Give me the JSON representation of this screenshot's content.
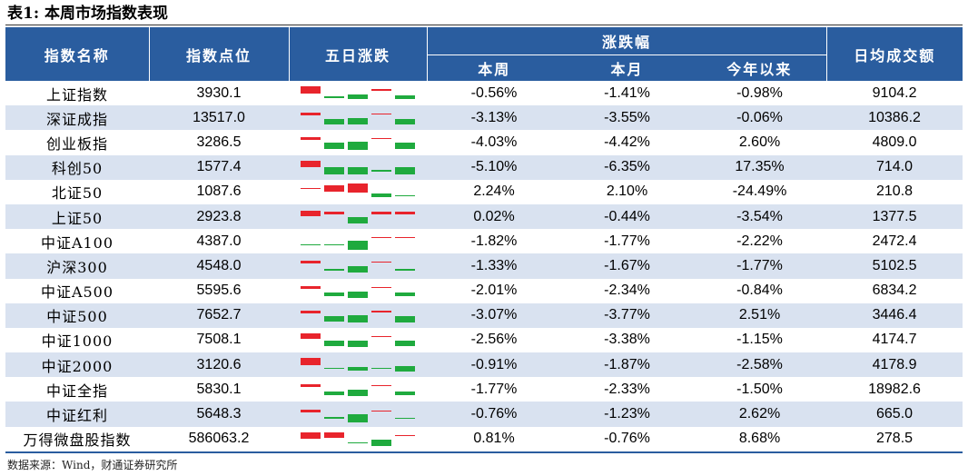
{
  "title": "表1: 本周市场指数表现",
  "colors": {
    "header_bg": "#2a5d9f",
    "row_alt": "#d9e2f0",
    "up": "#e8242c",
    "down": "#1faa3e"
  },
  "headers": {
    "name": "指数名称",
    "level": "指数点位",
    "five_day": "五日涨跌",
    "change_group": "涨跌幅",
    "week": "本周",
    "month": "本月",
    "ytd": "今年以来",
    "turnover": "日均成交额"
  },
  "rows": [
    {
      "name": "上证指数",
      "level": "3930.1",
      "week": "-0.56%",
      "month": "-1.41%",
      "ytd": "-0.98%",
      "turnover": "9104.2",
      "five_day": [
        0.7,
        -0.15,
        -0.45,
        0.15,
        -0.35
      ]
    },
    {
      "name": "深证成指",
      "level": "13517.0",
      "week": "-3.13%",
      "month": "-3.55%",
      "ytd": "-0.06%",
      "turnover": "10386.2",
      "five_day": [
        0.3,
        -0.5,
        -0.6,
        0.1,
        -0.5
      ]
    },
    {
      "name": "创业板指",
      "level": "3286.5",
      "week": "-4.03%",
      "month": "-4.42%",
      "ytd": "2.60%",
      "turnover": "4809.0",
      "five_day": [
        0.3,
        -0.6,
        -0.8,
        0.1,
        -0.6
      ]
    },
    {
      "name": "科创50",
      "level": "1577.4",
      "week": "-5.10%",
      "month": "-6.35%",
      "ytd": "17.35%",
      "turnover": "714.0",
      "five_day": [
        0.6,
        -0.7,
        -0.7,
        -0.2,
        -0.7
      ]
    },
    {
      "name": "北证50",
      "level": "1087.6",
      "week": "2.24%",
      "month": "2.10%",
      "ytd": "-24.49%",
      "turnover": "210.8",
      "five_day": [
        0.1,
        0.6,
        0.9,
        -0.4,
        -0.1
      ]
    },
    {
      "name": "上证50",
      "level": "2923.8",
      "week": "0.02%",
      "month": "-0.44%",
      "ytd": "-3.54%",
      "turnover": "1377.5",
      "five_day": [
        0.5,
        0.3,
        -0.6,
        0.3,
        0.3
      ]
    },
    {
      "name": "中证A100",
      "level": "4387.0",
      "week": "-1.82%",
      "month": "-1.77%",
      "ytd": "-2.22%",
      "turnover": "2472.4",
      "five_day": [
        -0.1,
        -0.1,
        -0.9,
        0.1,
        0.1
      ]
    },
    {
      "name": "沪深300",
      "level": "4548.0",
      "week": "-1.33%",
      "month": "-1.67%",
      "ytd": "-1.77%",
      "turnover": "5102.5",
      "five_day": [
        0.3,
        -0.2,
        -0.6,
        0.1,
        -0.2
      ]
    },
    {
      "name": "中证A500",
      "level": "5595.6",
      "week": "-2.01%",
      "month": "-2.34%",
      "ytd": "-0.84%",
      "turnover": "6834.2",
      "five_day": [
        0.3,
        -0.4,
        -0.6,
        0.1,
        -0.4
      ]
    },
    {
      "name": "中证500",
      "level": "7652.7",
      "week": "-3.07%",
      "month": "-3.77%",
      "ytd": "2.51%",
      "turnover": "3446.4",
      "five_day": [
        0.3,
        -0.5,
        -0.7,
        0.2,
        -0.6
      ]
    },
    {
      "name": "中证1000",
      "level": "7508.1",
      "week": "-2.56%",
      "month": "-3.38%",
      "ytd": "-1.15%",
      "turnover": "4174.7",
      "five_day": [
        0.5,
        -0.5,
        -0.6,
        0.1,
        -0.5
      ]
    },
    {
      "name": "中证2000",
      "level": "3120.6",
      "week": "-0.91%",
      "month": "-1.87%",
      "ytd": "-2.58%",
      "turnover": "4178.9",
      "five_day": [
        0.7,
        -0.1,
        -0.4,
        -0.1,
        -0.5
      ]
    },
    {
      "name": "中证全指",
      "level": "5830.1",
      "week": "-1.77%",
      "month": "-2.33%",
      "ytd": "-1.50%",
      "turnover": "18982.6",
      "five_day": [
        0.3,
        -0.4,
        -0.6,
        0.1,
        -0.4
      ]
    },
    {
      "name": "中证红利",
      "level": "5648.3",
      "week": "-0.76%",
      "month": "-1.23%",
      "ytd": "2.62%",
      "turnover": "665.0",
      "five_day": [
        0.3,
        -0.2,
        -0.8,
        0.1,
        -0.1
      ]
    },
    {
      "name": "万得微盘股指数",
      "level": "586063.2",
      "week": "0.81%",
      "month": "-0.76%",
      "ytd": "8.68%",
      "turnover": "278.5",
      "five_day": [
        0.6,
        0.5,
        -0.1,
        -0.6,
        0.1
      ]
    }
  ],
  "source": "数据来源：Wind，财通证券研究所"
}
